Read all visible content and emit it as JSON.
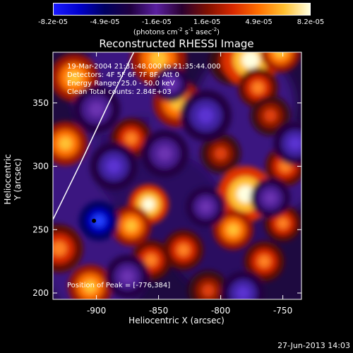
{
  "colorbar": {
    "tick_labels": [
      "-8.2e-05",
      "-4.9e-05",
      "-1.6e-05",
      "1.6e-05",
      "4.9e-05",
      "8.2e-05"
    ],
    "tick_values": [
      -8.2e-05,
      -4.9e-05,
      -1.6e-05,
      1.6e-05,
      4.9e-05,
      8.2e-05
    ],
    "range": [
      -8.2e-05,
      8.2e-05
    ],
    "units_main": "(photons cm",
    "units_exp1": "-2",
    "units_mid": " s",
    "units_exp2": "-1",
    "units_end": " asec",
    "units_exp3": "-2",
    "units_close": ")",
    "colors": [
      "#1a1aff",
      "#0000cc",
      "#000060",
      "#200040",
      "#5a20a0",
      "#2a0030",
      "#801000",
      "#d82800",
      "#ff7000",
      "#ffc030",
      "#ffffe0"
    ]
  },
  "chart_data": {
    "type": "heatmap",
    "title": "Reconstructed RHESSI Image",
    "xlabel": "Heliocentric X (arcsec)",
    "ylabel": "Heliocentric Y (arcsec)",
    "xlim": [
      -935,
      -735
    ],
    "ylim": [
      195,
      390
    ],
    "x_ticks": [
      -900,
      -850,
      -800,
      -750
    ],
    "x_tick_labels": [
      "-900",
      "-850",
      "-800",
      "-750"
    ],
    "y_ticks": [
      200,
      250,
      300,
      350
    ],
    "y_tick_labels": [
      "200",
      "250",
      "300",
      "350"
    ],
    "info_lines": [
      "19-Mar-2004 21:31:48.000 to 21:35:44.000",
      "Detectors: 4F 5F 6F 7F 8F, Att 0",
      "Energy Range: 25.0 - 50.0 keV",
      "Clean    Total counts: 2.84E+03"
    ],
    "peak_label": "Position of Peak = [-776,384]",
    "peak_position": [
      -776,
      384
    ],
    "limb_curve": [
      [
        -935,
        258
      ],
      [
        -913,
        302
      ],
      [
        -890,
        350
      ],
      [
        -870,
        390
      ]
    ],
    "marker": [
      -902,
      257
    ],
    "blobs": [
      {
        "x": -918,
        "y": 370,
        "s": 12,
        "v": 0.9
      },
      {
        "x": -925,
        "y": 318,
        "s": 11,
        "v": 0.8
      },
      {
        "x": -930,
        "y": 235,
        "s": 12,
        "v": 0.65
      },
      {
        "x": -858,
        "y": 270,
        "s": 10,
        "v": 1.0
      },
      {
        "x": -872,
        "y": 253,
        "s": 10,
        "v": 0.9
      },
      {
        "x": -856,
        "y": 226,
        "s": 10,
        "v": 0.7
      },
      {
        "x": -830,
        "y": 234,
        "s": 10,
        "v": 0.65
      },
      {
        "x": -835,
        "y": 350,
        "s": 12,
        "v": 0.8
      },
      {
        "x": -850,
        "y": 385,
        "s": 14,
        "v": 0.8
      },
      {
        "x": -872,
        "y": 322,
        "s": 10,
        "v": 0.7
      },
      {
        "x": -790,
        "y": 383,
        "s": 12,
        "v": 0.6
      },
      {
        "x": -776,
        "y": 384,
        "s": 14,
        "v": 1.0
      },
      {
        "x": -770,
        "y": 362,
        "s": 10,
        "v": 0.7
      },
      {
        "x": -752,
        "y": 390,
        "s": 10,
        "v": 0.9
      },
      {
        "x": -760,
        "y": 340,
        "s": 10,
        "v": 0.6
      },
      {
        "x": -780,
        "y": 278,
        "s": 14,
        "v": 1.0
      },
      {
        "x": -790,
        "y": 250,
        "s": 10,
        "v": 0.8
      },
      {
        "x": -748,
        "y": 300,
        "s": 10,
        "v": 0.7
      },
      {
        "x": -765,
        "y": 225,
        "s": 10,
        "v": 0.7
      },
      {
        "x": -810,
        "y": 202,
        "s": 10,
        "v": 0.6
      },
      {
        "x": -905,
        "y": 205,
        "s": 11,
        "v": 0.8
      },
      {
        "x": -800,
        "y": 310,
        "s": 10,
        "v": 0.55
      },
      {
        "x": -750,
        "y": 255,
        "s": 9,
        "v": 0.75
      },
      {
        "x": -898,
        "y": 257,
        "s": 10,
        "v": -1.0
      },
      {
        "x": -886,
        "y": 300,
        "s": 12,
        "v": -0.7
      },
      {
        "x": -740,
        "y": 318,
        "s": 11,
        "v": -0.85
      },
      {
        "x": -812,
        "y": 340,
        "s": 13,
        "v": -0.65
      },
      {
        "x": -782,
        "y": 200,
        "s": 11,
        "v": -0.75
      },
      {
        "x": -845,
        "y": 310,
        "s": 12,
        "v": -0.6
      },
      {
        "x": -900,
        "y": 345,
        "s": 12,
        "v": -0.55
      },
      {
        "x": -812,
        "y": 268,
        "s": 10,
        "v": -0.55
      },
      {
        "x": -760,
        "y": 275,
        "s": 10,
        "v": -0.5
      },
      {
        "x": -875,
        "y": 213,
        "s": 11,
        "v": -0.6
      },
      {
        "x": -840,
        "y": 365,
        "s": 9,
        "v": -0.5
      }
    ]
  },
  "footer": {
    "date": "27-Jun-2013 14:03"
  }
}
